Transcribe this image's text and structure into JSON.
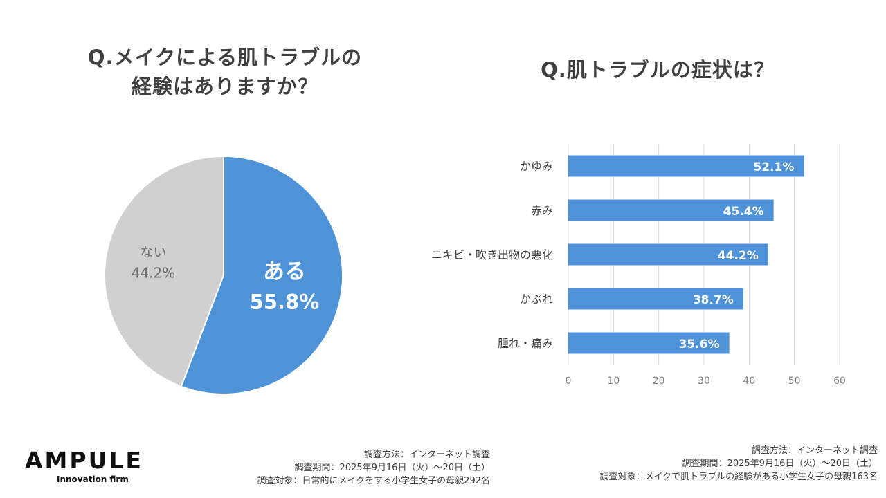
{
  "logo": {
    "name": "AMPULE",
    "tagline": "Innovation firm"
  },
  "chart_data": [
    {
      "type": "pie",
      "title_line1": "Q.メイクによる肌トラブルの",
      "title_line2": "経験はありますか？",
      "slices": [
        {
          "label": "ある",
          "value": 55.8,
          "display": "55.8%",
          "color": "#4E93D8"
        },
        {
          "label": "ない",
          "value": 44.2,
          "display": "44.2%",
          "color": "#D0D0D0"
        }
      ],
      "survey_note": {
        "method": "調査方法：インターネット調査",
        "period": "調査期間：2025年9月16日（火）～20日（土）",
        "target": "調査対象：日常的にメイクをする小学生女子の母親292名"
      }
    },
    {
      "type": "bar",
      "orientation": "horizontal",
      "title": "Q.肌トラブルの症状は？",
      "categories": [
        "かゆみ",
        "赤み",
        "ニキビ・吹き出物の悪化",
        "かぶれ",
        "腫れ・痛み"
      ],
      "values": [
        52.1,
        45.4,
        44.2,
        38.7,
        35.6
      ],
      "value_labels": [
        "52.1%",
        "45.4%",
        "44.2%",
        "38.7%",
        "35.6%"
      ],
      "xlim": [
        0,
        60
      ],
      "ticks": [
        "0",
        "10",
        "20",
        "30",
        "40",
        "50",
        "60"
      ],
      "grid": true,
      "bar_color": "#4E93D8",
      "survey_note": {
        "method": "調査方法：インターネット調査",
        "period": "調査期間：2025年9月16日（火）～20日（土）",
        "target": "調査対象：メイクで肌トラブルの経験がある小学生女子の母親163名"
      }
    }
  ]
}
